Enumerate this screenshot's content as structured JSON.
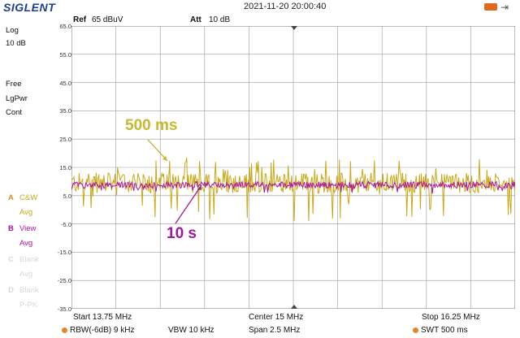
{
  "brand": "SIGLENT",
  "datetime": "2021-11-20 20:00:40",
  "header": {
    "ref_label": "Ref",
    "ref_value": "65 dBuV",
    "att_label": "Att",
    "att_value": "10 dB"
  },
  "sidebar": {
    "scale_type": "Log",
    "scale_div": "10 dB",
    "mode1": "Free",
    "mode2": "LgPwr",
    "mode3": "Cont",
    "traces": [
      {
        "key": "A",
        "name": "C&W",
        "mode": "Avg",
        "color": "#c8a818",
        "active": true
      },
      {
        "key": "B",
        "name": "View",
        "mode": "Avg",
        "color": "#b0139a",
        "active": true
      },
      {
        "key": "C",
        "name": "Blank",
        "mode": "Avg",
        "color": "#d8d8d8",
        "active": false
      },
      {
        "key": "D",
        "name": "Blank",
        "mode": "P-PK",
        "color": "#d8d8d8",
        "active": false
      }
    ]
  },
  "footer": {
    "start": "Start  13.75 MHz",
    "center": "Center  15 MHz",
    "stop": "Stop  16.25 MHz",
    "rbw": "RBW(-6dB)  9 kHz",
    "vbw": "VBW  10 kHz",
    "span": "Span   2.5 MHz",
    "swt": "SWT  500 ms"
  },
  "annotations": {
    "top": "500 ms",
    "bottom": "10 s"
  },
  "colors": {
    "trace_a": "#c8a818",
    "trace_b": "#b0139a",
    "grid": "#9a9a9a",
    "annot_top": "#c8b830",
    "annot_bottom": "#a0189a"
  },
  "chart_data": {
    "type": "line",
    "y_ticks": [
      "65.0",
      "55.0",
      "45.0",
      "35.0",
      "25.0",
      "15.0",
      "5.0",
      "-5.0",
      "-15.0",
      "-25.0",
      "-35.0"
    ],
    "ylim": [
      -35,
      65
    ],
    "xlim": [
      13.75,
      16.25
    ],
    "series": [
      {
        "name": "C&W",
        "level": 9.5,
        "spread": 6,
        "values_note": ""
      },
      {
        "name": "View",
        "level": 8.8,
        "spread": 1.2
      }
    ]
  }
}
